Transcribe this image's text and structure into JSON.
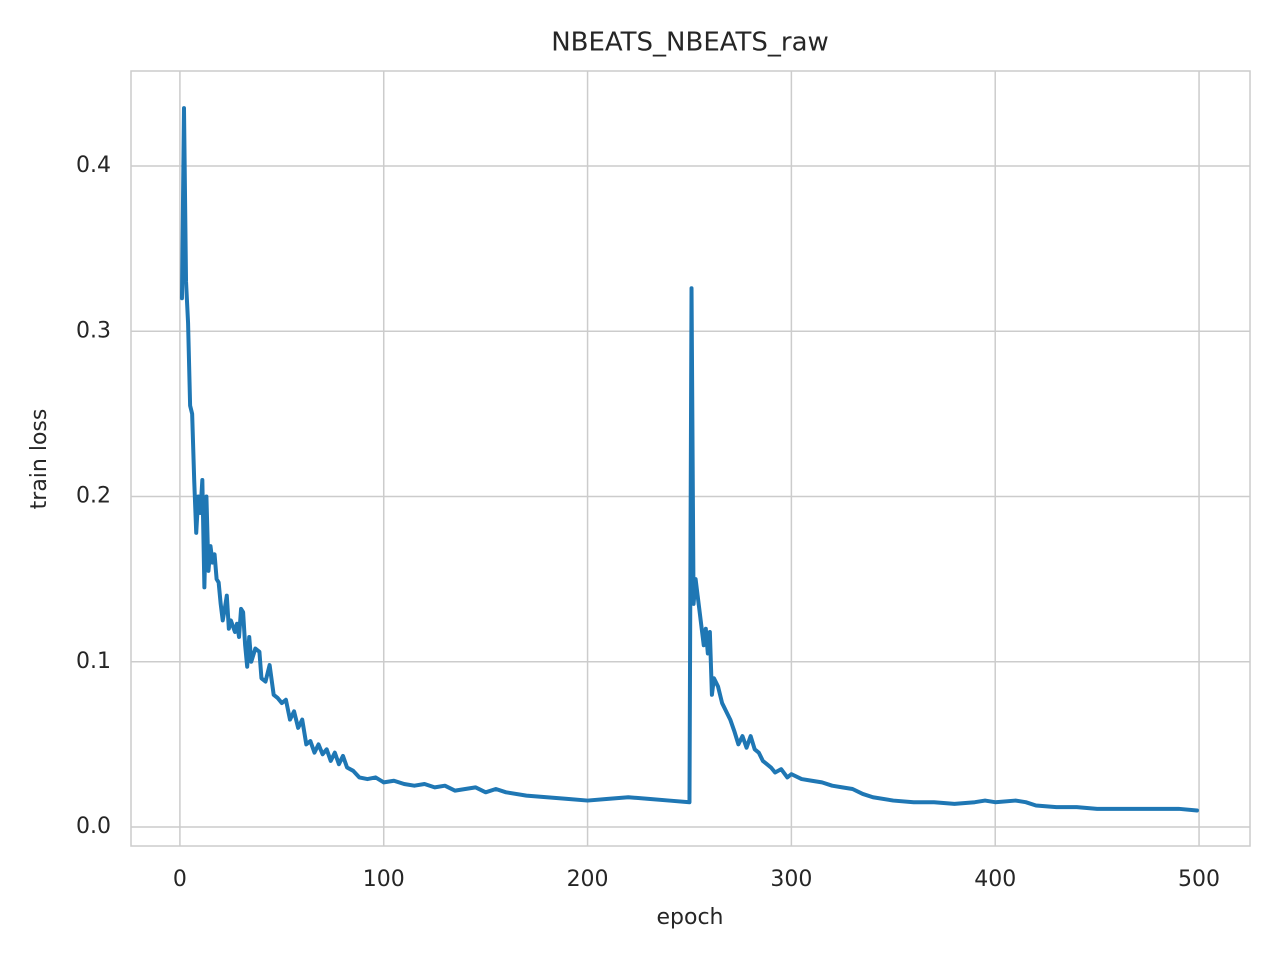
{
  "chart_data": {
    "type": "line",
    "title": "NBEATS_NBEATS_raw",
    "x_label": "epoch",
    "y_label": "train loss",
    "color": "#1f77b4",
    "grid": true,
    "x": [
      1,
      2,
      3,
      4,
      5,
      6,
      7,
      8,
      9,
      10,
      11,
      12,
      13,
      14,
      15,
      16,
      17,
      18,
      19,
      20,
      21,
      22,
      23,
      24,
      25,
      27,
      28,
      29,
      30,
      31,
      32,
      33,
      34,
      35,
      37,
      39,
      40,
      42,
      44,
      46,
      48,
      50,
      52,
      54,
      56,
      58,
      60,
      62,
      64,
      66,
      68,
      70,
      72,
      74,
      76,
      78,
      80,
      82,
      85,
      88,
      92,
      96,
      100,
      105,
      110,
      115,
      120,
      125,
      130,
      135,
      140,
      145,
      150,
      155,
      160,
      170,
      180,
      190,
      200,
      210,
      220,
      230,
      240,
      250,
      251,
      252,
      253,
      254,
      255,
      256,
      257,
      258,
      259,
      260,
      261,
      262,
      264,
      266,
      268,
      270,
      272,
      274,
      276,
      278,
      280,
      282,
      284,
      286,
      288,
      290,
      292,
      295,
      298,
      300,
      305,
      310,
      315,
      320,
      325,
      330,
      335,
      340,
      350,
      360,
      370,
      380,
      390,
      395,
      400,
      410,
      415,
      420,
      430,
      440,
      450,
      460,
      470,
      480,
      490,
      499
    ],
    "values": [
      0.32,
      0.435,
      0.33,
      0.305,
      0.255,
      0.25,
      0.21,
      0.178,
      0.2,
      0.19,
      0.21,
      0.145,
      0.2,
      0.155,
      0.17,
      0.16,
      0.165,
      0.15,
      0.148,
      0.135,
      0.125,
      0.132,
      0.14,
      0.12,
      0.125,
      0.118,
      0.123,
      0.115,
      0.132,
      0.13,
      0.11,
      0.097,
      0.115,
      0.1,
      0.108,
      0.106,
      0.09,
      0.088,
      0.098,
      0.08,
      0.078,
      0.075,
      0.077,
      0.065,
      0.07,
      0.06,
      0.065,
      0.05,
      0.052,
      0.045,
      0.05,
      0.044,
      0.047,
      0.04,
      0.045,
      0.038,
      0.043,
      0.036,
      0.034,
      0.03,
      0.029,
      0.03,
      0.027,
      0.028,
      0.026,
      0.025,
      0.026,
      0.024,
      0.025,
      0.022,
      0.023,
      0.024,
      0.021,
      0.023,
      0.021,
      0.019,
      0.018,
      0.017,
      0.016,
      0.017,
      0.018,
      0.017,
      0.016,
      0.015,
      0.326,
      0.135,
      0.15,
      0.14,
      0.13,
      0.12,
      0.11,
      0.12,
      0.105,
      0.118,
      0.08,
      0.09,
      0.085,
      0.075,
      0.07,
      0.065,
      0.058,
      0.05,
      0.055,
      0.048,
      0.055,
      0.047,
      0.045,
      0.04,
      0.038,
      0.036,
      0.033,
      0.035,
      0.03,
      0.032,
      0.029,
      0.028,
      0.027,
      0.025,
      0.024,
      0.023,
      0.02,
      0.018,
      0.016,
      0.015,
      0.015,
      0.014,
      0.015,
      0.016,
      0.015,
      0.016,
      0.015,
      0.013,
      0.012,
      0.012,
      0.011,
      0.011,
      0.011,
      0.011,
      0.011,
      0.01
    ],
    "xlim": [
      -24,
      525
    ],
    "ylim": [
      -0.0115,
      0.4575
    ],
    "xticks": [
      0,
      100,
      200,
      300,
      400,
      500
    ],
    "yticks": [
      {
        "value": 0,
        "label": "0.0"
      },
      0.1,
      0.2,
      0.3,
      0.4
    ]
  }
}
